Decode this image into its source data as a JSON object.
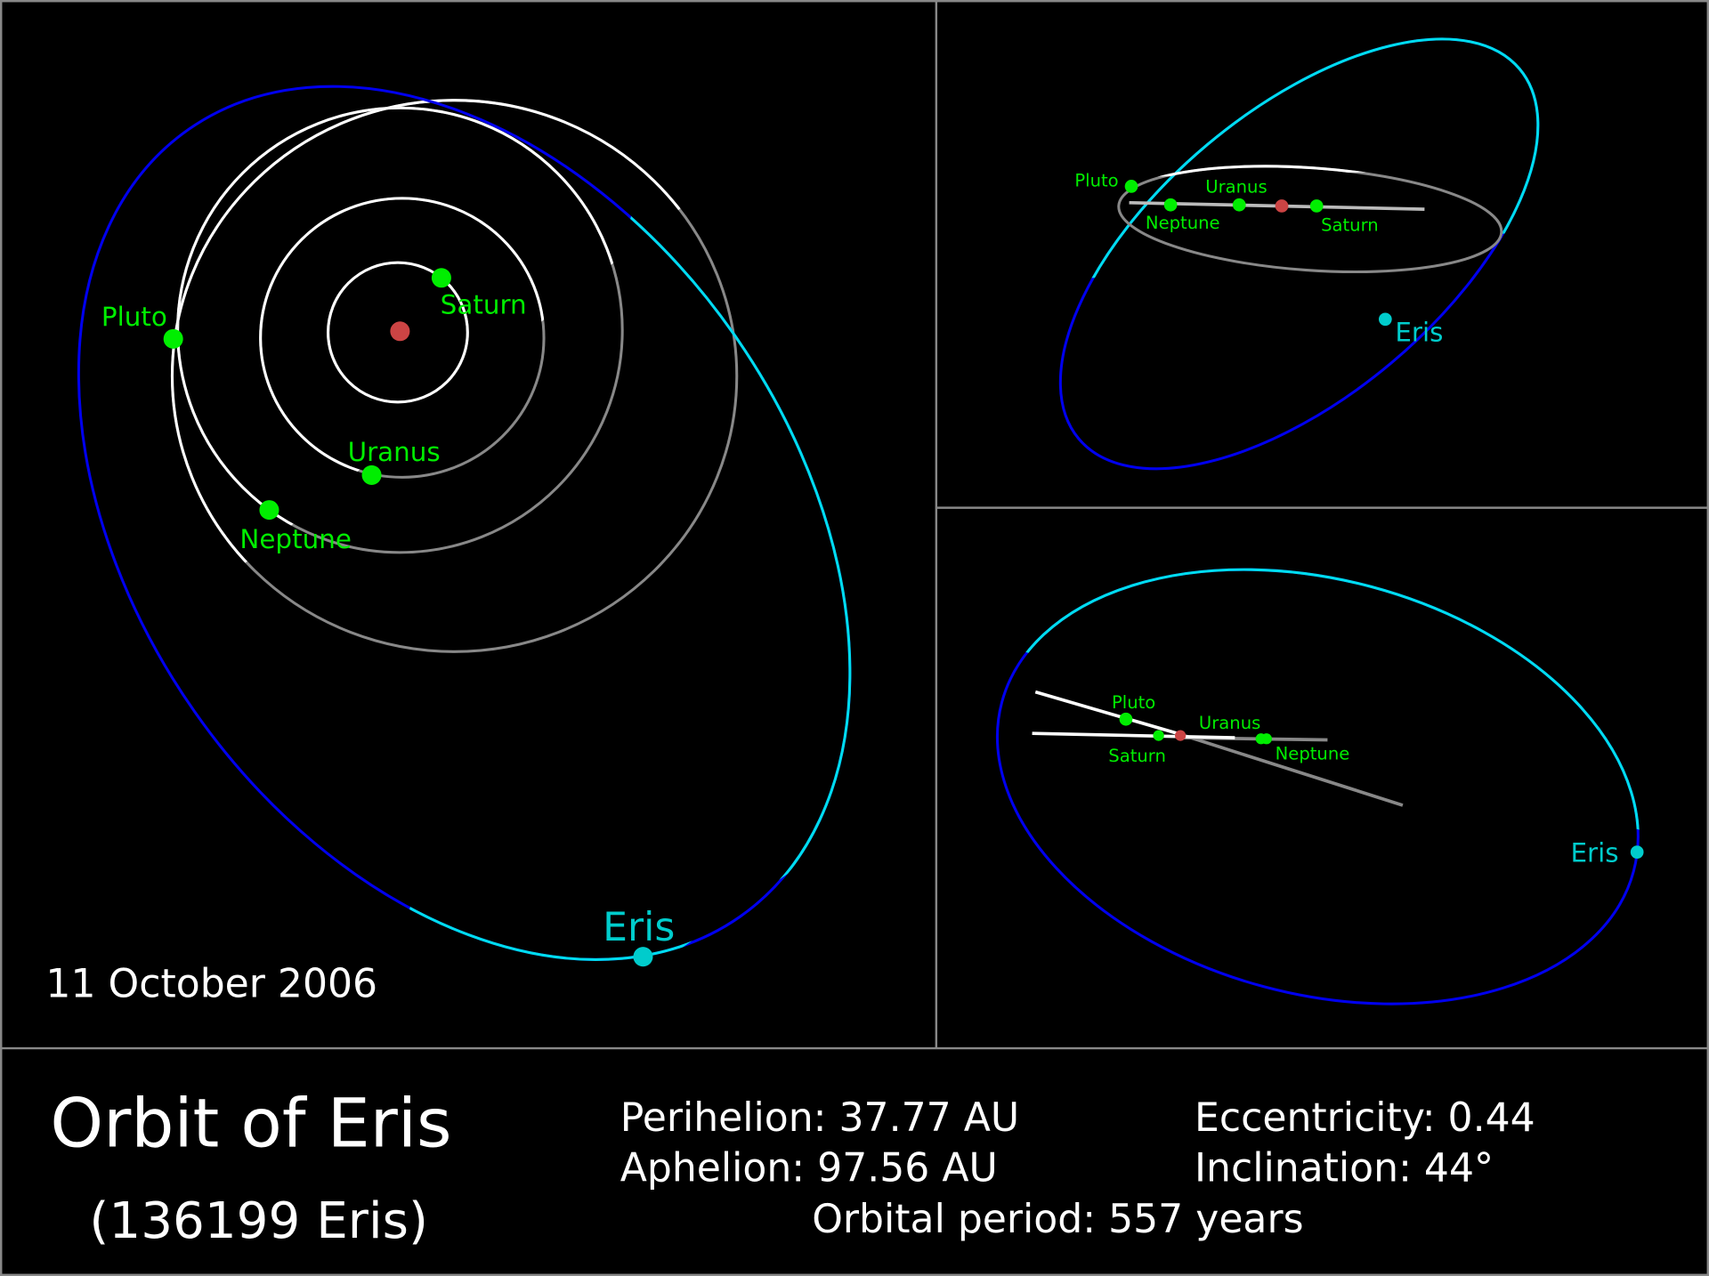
{
  "colors": {
    "background": "#000000",
    "planet": "#00ee00",
    "sun": "#cc4444",
    "eris": "#00cccc",
    "eris_orbit_above": "#00ddee",
    "eris_orbit_below": "#0000ee",
    "orbit_above": "#ffffff",
    "orbit_below": "#888888",
    "divider": "#888888"
  },
  "main_view": {
    "date": "11 October 2006",
    "labels": {
      "pluto": "Pluto",
      "saturn": "Saturn",
      "uranus": "Uranus",
      "neptune": "Neptune",
      "eris": "Eris"
    }
  },
  "side_view_top": {
    "labels": {
      "pluto": "Pluto",
      "uranus": "Uranus",
      "neptune": "Neptune",
      "saturn": "Saturn",
      "eris": "Eris"
    }
  },
  "side_view_bottom": {
    "labels": {
      "pluto": "Pluto",
      "uranus": "Uranus",
      "saturn": "Saturn",
      "neptune": "Neptune",
      "eris": "Eris"
    }
  },
  "info": {
    "title": "Orbit of Eris",
    "subtitle": "(136199 Eris)",
    "perihelion": "Perihelion: 37.77 AU",
    "aphelion": "Aphelion: 97.56 AU",
    "eccentricity": "Eccentricity: 0.44",
    "inclination": "Inclination: 44°",
    "period": "Orbital period: 557 years"
  }
}
